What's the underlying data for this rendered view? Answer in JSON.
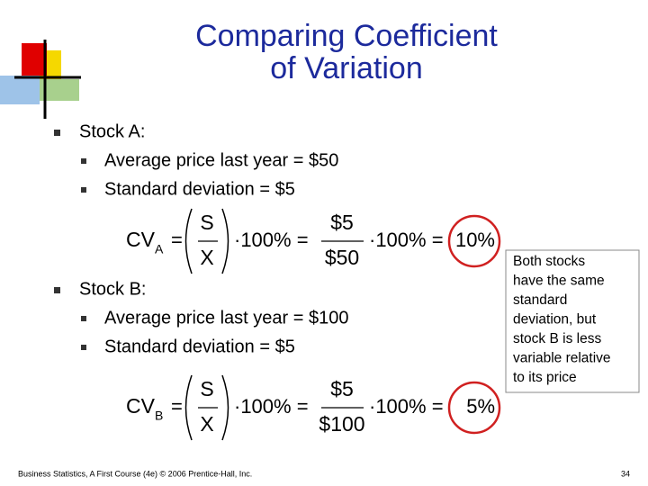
{
  "title": [
    "Comparing Coefficient",
    "of Variation"
  ],
  "bullets": [
    {
      "text": "Stock A:",
      "sub": [
        "Average price last year = $50",
        "Standard deviation = $5"
      ]
    },
    {
      "text": "Stock B:",
      "sub": [
        "Average price last year = $100",
        "Standard deviation = $5"
      ]
    }
  ],
  "formulas": [
    {
      "lhs": "CV",
      "subscript": "A",
      "eq": "=",
      "numerator": "S",
      "denominator": "X",
      "times": "·100% =",
      "num2": "$5",
      "den2": "$50",
      "times2": "·100% =",
      "result": "10%"
    },
    {
      "lhs": "CV",
      "subscript": "B",
      "eq": "=",
      "numerator": "S",
      "denominator": "X",
      "times": "·100% =",
      "num2": "$5",
      "den2": "$100",
      "times2": "·100% =",
      "result": "5%"
    }
  ],
  "callout": [
    "Both stocks",
    "have the same",
    "standard",
    "deviation, but",
    "stock B is less",
    "variable relative",
    "to its price"
  ],
  "footer": "Business Statistics, A First Course (4e) © 2006 Prentice-Hall, Inc.",
  "page": "34"
}
